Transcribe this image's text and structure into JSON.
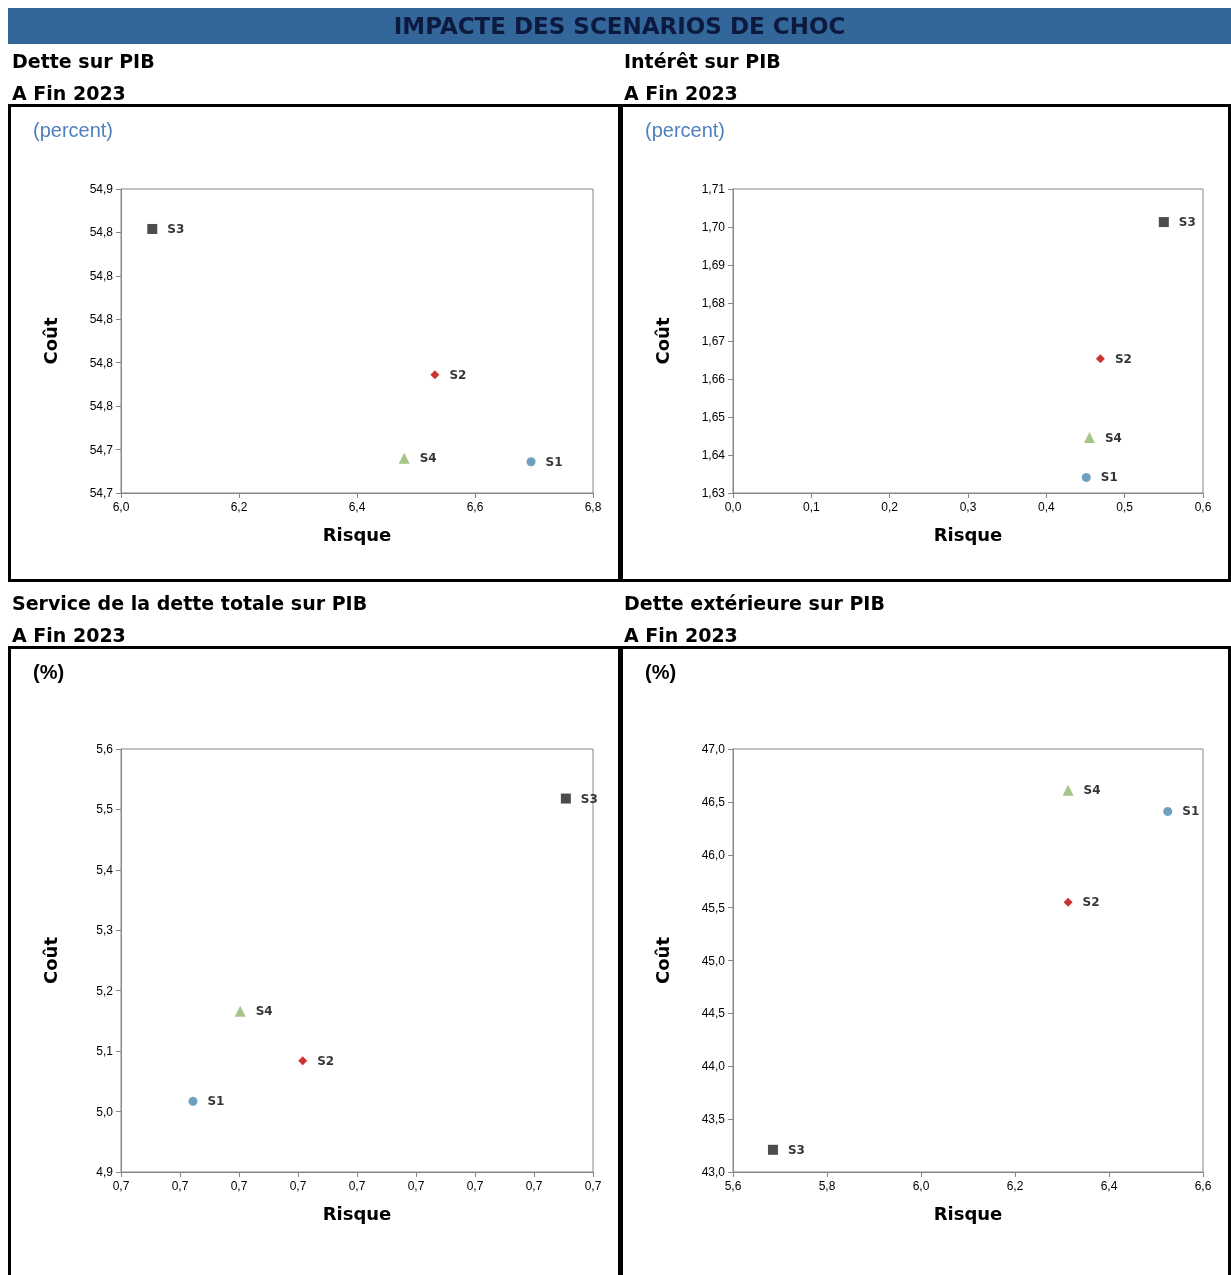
{
  "chart_data": [
    {
      "type": "other",
      "title": "IMPACTE DES SCENARIOS DE CHOC"
    },
    {
      "type": "scatter",
      "title": "Dette sur PIB",
      "subtitle": "A Fin 2023",
      "annotations": [
        "(percent)"
      ],
      "xlabel": "Risque",
      "ylabel": "Coût",
      "grid": false,
      "legend": false,
      "xlim": [
        6.0,
        6.8
      ],
      "xticks": [
        {
          "value": 6.0,
          "label": "6,0"
        },
        {
          "value": 6.2,
          "label": "6,2"
        },
        {
          "value": 6.4,
          "label": "6,4"
        },
        {
          "value": 6.6,
          "label": "6,6"
        },
        {
          "value": 6.8,
          "label": "6,8"
        }
      ],
      "ylim": [
        54.7,
        54.875
      ],
      "yticks": [
        {
          "value": 54.7,
          "label": "54,7"
        },
        {
          "value": 54.725,
          "label": "54,7"
        },
        {
          "value": 54.75,
          "label": "54,8"
        },
        {
          "value": 54.775,
          "label": "54,8"
        },
        {
          "value": 54.8,
          "label": "54,8"
        },
        {
          "value": 54.825,
          "label": "54,8"
        },
        {
          "value": 54.85,
          "label": "54,8"
        },
        {
          "value": 54.875,
          "label": "54,9"
        }
      ],
      "series": [
        {
          "name": "S1",
          "color": "#4a8ab0",
          "marker": "circle",
          "x": [
            6.695
          ],
          "values": [
            54.718
          ]
        },
        {
          "name": "S2",
          "color": "#c00000",
          "marker": "diamond",
          "x": [
            6.532
          ],
          "values": [
            54.768
          ]
        },
        {
          "name": "S3",
          "color": "#1f1f1f",
          "marker": "square",
          "x": [
            6.053
          ],
          "values": [
            54.852
          ]
        },
        {
          "name": "S4",
          "color": "#8fb86a",
          "marker": "triangle",
          "x": [
            6.48
          ],
          "values": [
            54.72
          ]
        }
      ]
    },
    {
      "type": "scatter",
      "title": "Intérêt sur PIB",
      "subtitle": "A Fin 2023",
      "annotations": [
        "(percent)"
      ],
      "xlabel": "Risque",
      "ylabel": "Coût",
      "grid": false,
      "legend": false,
      "xlim": [
        0,
        0.6
      ],
      "xticks": [
        {
          "value": 0,
          "label": "0,0"
        },
        {
          "value": 0.1,
          "label": "0,1"
        },
        {
          "value": 0.2,
          "label": "0,2"
        },
        {
          "value": 0.3,
          "label": "0,3"
        },
        {
          "value": 0.4,
          "label": "0,4"
        },
        {
          "value": 0.5,
          "label": "0,5"
        },
        {
          "value": 0.6,
          "label": "0,6"
        }
      ],
      "ylim": [
        1.63,
        1.71
      ],
      "yticks": [
        {
          "value": 1.63,
          "label": "1,63"
        },
        {
          "value": 1.64,
          "label": "1,64"
        },
        {
          "value": 1.65,
          "label": "1,65"
        },
        {
          "value": 1.66,
          "label": "1,66"
        },
        {
          "value": 1.67,
          "label": "1,67"
        },
        {
          "value": 1.68,
          "label": "1,68"
        },
        {
          "value": 1.69,
          "label": "1,69"
        },
        {
          "value": 1.7,
          "label": "1,70"
        },
        {
          "value": 1.71,
          "label": "1,71"
        }
      ],
      "series": [
        {
          "name": "S1",
          "color": "#4a8ab0",
          "marker": "circle",
          "x": [
            0.451
          ],
          "values": [
            1.6341
          ]
        },
        {
          "name": "S2",
          "color": "#c00000",
          "marker": "diamond",
          "x": [
            0.469
          ],
          "values": [
            1.6653
          ]
        },
        {
          "name": "S3",
          "color": "#1f1f1f",
          "marker": "square",
          "x": [
            0.55
          ],
          "values": [
            1.7013
          ]
        },
        {
          "name": "S4",
          "color": "#8fb86a",
          "marker": "triangle",
          "x": [
            0.455
          ],
          "values": [
            1.6446
          ]
        }
      ]
    },
    {
      "type": "scatter",
      "title": "Service de la dette totale sur PIB",
      "subtitle": "A Fin 2023",
      "annotations": [
        "(%)"
      ],
      "xlabel": "Risque",
      "ylabel": "Coût",
      "grid": false,
      "legend": false,
      "xlim": [
        0.68,
        0.72
      ],
      "xticks": [
        {
          "value": 0.68,
          "label": "0,7"
        },
        {
          "value": 0.685,
          "label": "0,7"
        },
        {
          "value": 0.69,
          "label": "0,7"
        },
        {
          "value": 0.695,
          "label": "0,7"
        },
        {
          "value": 0.7,
          "label": "0,7"
        },
        {
          "value": 0.705,
          "label": "0,7"
        },
        {
          "value": 0.71,
          "label": "0,7"
        },
        {
          "value": 0.715,
          "label": "0,7"
        },
        {
          "value": 0.72,
          "label": "0,7"
        }
      ],
      "ylim": [
        4.9,
        5.6
      ],
      "yticks": [
        {
          "value": 4.9,
          "label": "4,9"
        },
        {
          "value": 5.0,
          "label": "5,0"
        },
        {
          "value": 5.1,
          "label": "5,1"
        },
        {
          "value": 5.2,
          "label": "5,2"
        },
        {
          "value": 5.3,
          "label": "5,3"
        },
        {
          "value": 5.4,
          "label": "5,4"
        },
        {
          "value": 5.5,
          "label": "5,5"
        },
        {
          "value": 5.6,
          "label": "5,6"
        }
      ],
      "series": [
        {
          "name": "S1",
          "color": "#4a8ab0",
          "marker": "circle",
          "x": [
            0.6861
          ],
          "values": [
            5.017
          ]
        },
        {
          "name": "S2",
          "color": "#c00000",
          "marker": "diamond",
          "x": [
            0.6954
          ],
          "values": [
            5.084
          ]
        },
        {
          "name": "S3",
          "color": "#1f1f1f",
          "marker": "square",
          "x": [
            0.7177
          ],
          "values": [
            5.518
          ]
        },
        {
          "name": "S4",
          "color": "#8fb86a",
          "marker": "triangle",
          "x": [
            0.6901
          ],
          "values": [
            5.166
          ]
        }
      ]
    },
    {
      "type": "scatter",
      "title": "Dette extérieure sur PIB",
      "subtitle": "A Fin 2023",
      "annotations": [
        "(%)"
      ],
      "xlabel": "Risque",
      "ylabel": "Coût",
      "grid": false,
      "legend": false,
      "xlim": [
        5.6,
        6.6
      ],
      "xticks": [
        {
          "value": 5.6,
          "label": "5,6"
        },
        {
          "value": 5.8,
          "label": "5,8"
        },
        {
          "value": 6.0,
          "label": "6,0"
        },
        {
          "value": 6.2,
          "label": "6,2"
        },
        {
          "value": 6.4,
          "label": "6,4"
        },
        {
          "value": 6.6,
          "label": "6,6"
        }
      ],
      "ylim": [
        43.0,
        47.0
      ],
      "yticks": [
        {
          "value": 43.0,
          "label": "43,0"
        },
        {
          "value": 43.5,
          "label": "43,5"
        },
        {
          "value": 44.0,
          "label": "44,0"
        },
        {
          "value": 44.5,
          "label": "44,5"
        },
        {
          "value": 45.0,
          "label": "45,0"
        },
        {
          "value": 45.5,
          "label": "45,5"
        },
        {
          "value": 46.0,
          "label": "46,0"
        },
        {
          "value": 46.5,
          "label": "46,5"
        },
        {
          "value": 47.0,
          "label": "47,0"
        }
      ],
      "series": [
        {
          "name": "S1",
          "color": "#4a8ab0",
          "marker": "circle",
          "x": [
            6.525
          ],
          "values": [
            46.41
          ]
        },
        {
          "name": "S2",
          "color": "#c00000",
          "marker": "diamond",
          "x": [
            6.313
          ],
          "values": [
            45.55
          ]
        },
        {
          "name": "S3",
          "color": "#1f1f1f",
          "marker": "square",
          "x": [
            5.685
          ],
          "values": [
            43.21
          ]
        },
        {
          "name": "S4",
          "color": "#8fb86a",
          "marker": "triangle",
          "x": [
            6.313
          ],
          "values": [
            46.61
          ]
        }
      ]
    }
  ]
}
